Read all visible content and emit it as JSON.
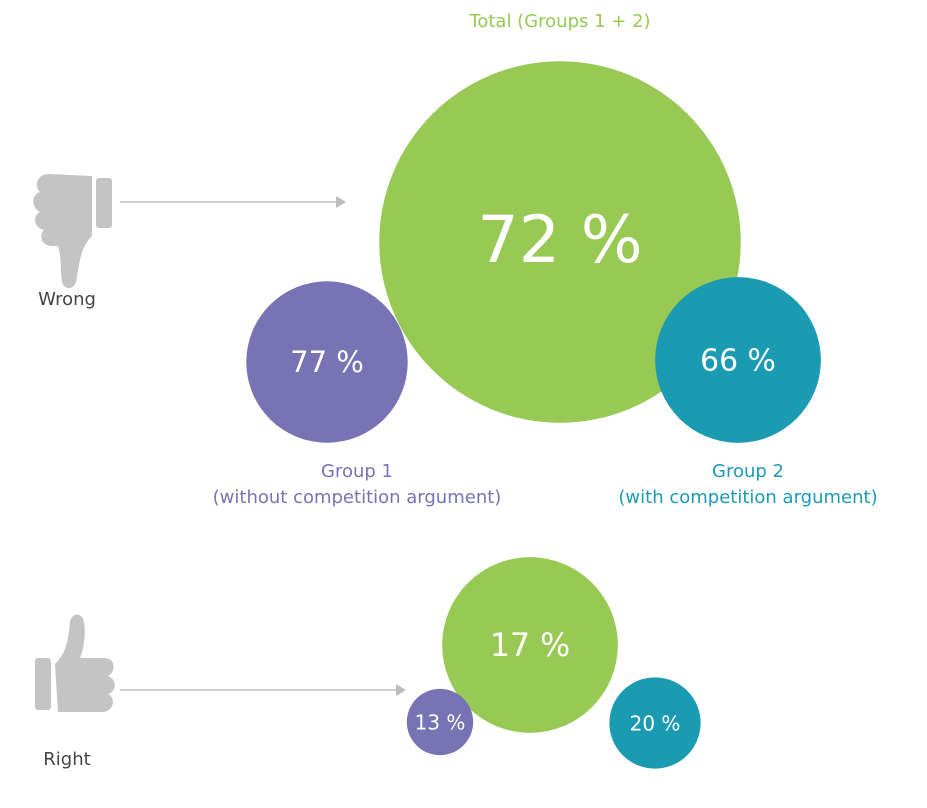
{
  "chart_data": {
    "type": "bubble",
    "categories": [
      "Wrong",
      "Right"
    ],
    "series": [
      {
        "name": "Total (Groups 1 + 2)",
        "color": "#97c954",
        "values": [
          72,
          17
        ],
        "value_labels": [
          "72 %",
          "17 %"
        ]
      },
      {
        "name": "Group 1",
        "description": "(without competition argument)",
        "color": "#7873b5",
        "values": [
          77,
          13
        ],
        "value_labels": [
          "77 %",
          "13 %"
        ]
      },
      {
        "name": "Group 2",
        "description": "(with competition argument)",
        "color": "#1a9bb2",
        "values": [
          66,
          20
        ],
        "value_labels": [
          "66 %",
          "20 %"
        ]
      }
    ]
  }
}
